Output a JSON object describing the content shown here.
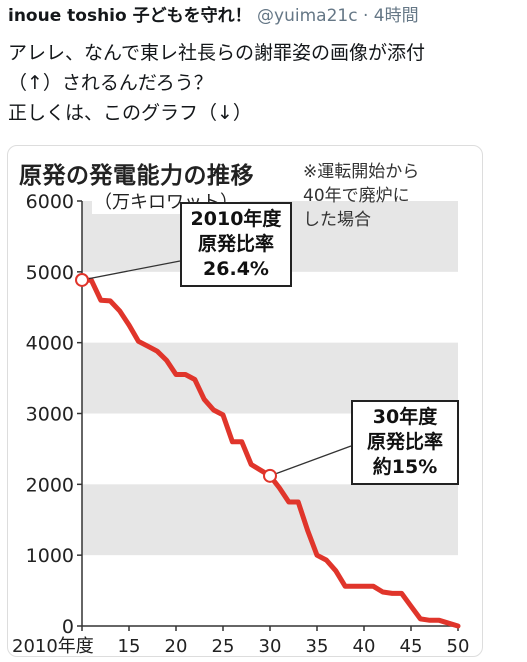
{
  "tweet": {
    "author_name": "inoue toshio 子どもを守れ！",
    "handle": "@yuima21c",
    "separator": "·",
    "time": "4時間",
    "lines": [
      "アレレ、なんで東レ社長らの謝罪姿の画像が添付",
      "（↑）されるんだろう？",
      "正しくは、このグラフ（↓）"
    ]
  },
  "chart_data": {
    "type": "line",
    "title": "原発の発電能力の推移",
    "note": [
      "※運転開始から",
      "40年で廃炉に",
      "した場合"
    ],
    "ylabel": "（万キロワット）",
    "xlim": [
      2010,
      2050
    ],
    "ylim": [
      0,
      6000
    ],
    "x_tick_labels": [
      "2010年度",
      "15",
      "20",
      "25",
      "30",
      "35",
      "40",
      "45",
      "50"
    ],
    "y_tick_labels": [
      "0",
      "1000",
      "2000",
      "3000",
      "4000",
      "5000",
      "6000"
    ],
    "grid_bands": true,
    "series": [
      {
        "color": "#e0352b",
        "x": [
          2010,
          2011,
          2012,
          2013,
          2014,
          2015,
          2016,
          2017,
          2018,
          2019,
          2020,
          2021,
          2022,
          2023,
          2024,
          2025,
          2026,
          2027,
          2028,
          2029,
          2030,
          2031,
          2032,
          2033,
          2034,
          2035,
          2036,
          2037,
          2038,
          2039,
          2040,
          2041,
          2042,
          2043,
          2044,
          2045,
          2046,
          2047,
          2048,
          2049,
          2050
        ],
        "y": [
          4885,
          4880,
          4600,
          4590,
          4450,
          4250,
          4020,
          3950,
          3880,
          3750,
          3550,
          3550,
          3480,
          3200,
          3050,
          2980,
          2600,
          2600,
          2280,
          2200,
          2120,
          1950,
          1750,
          1750,
          1350,
          1000,
          930,
          780,
          560,
          560,
          560,
          560,
          480,
          460,
          460,
          280,
          100,
          80,
          80,
          40,
          0
        ]
      }
    ],
    "annotations": [
      {
        "x": 2010,
        "y": 4885,
        "lines": [
          "2010年度",
          "原発比率",
          "26.4%"
        ]
      },
      {
        "x": 2030,
        "y": 2120,
        "lines": [
          "30年度",
          "原発比率",
          "約15%"
        ]
      }
    ]
  }
}
